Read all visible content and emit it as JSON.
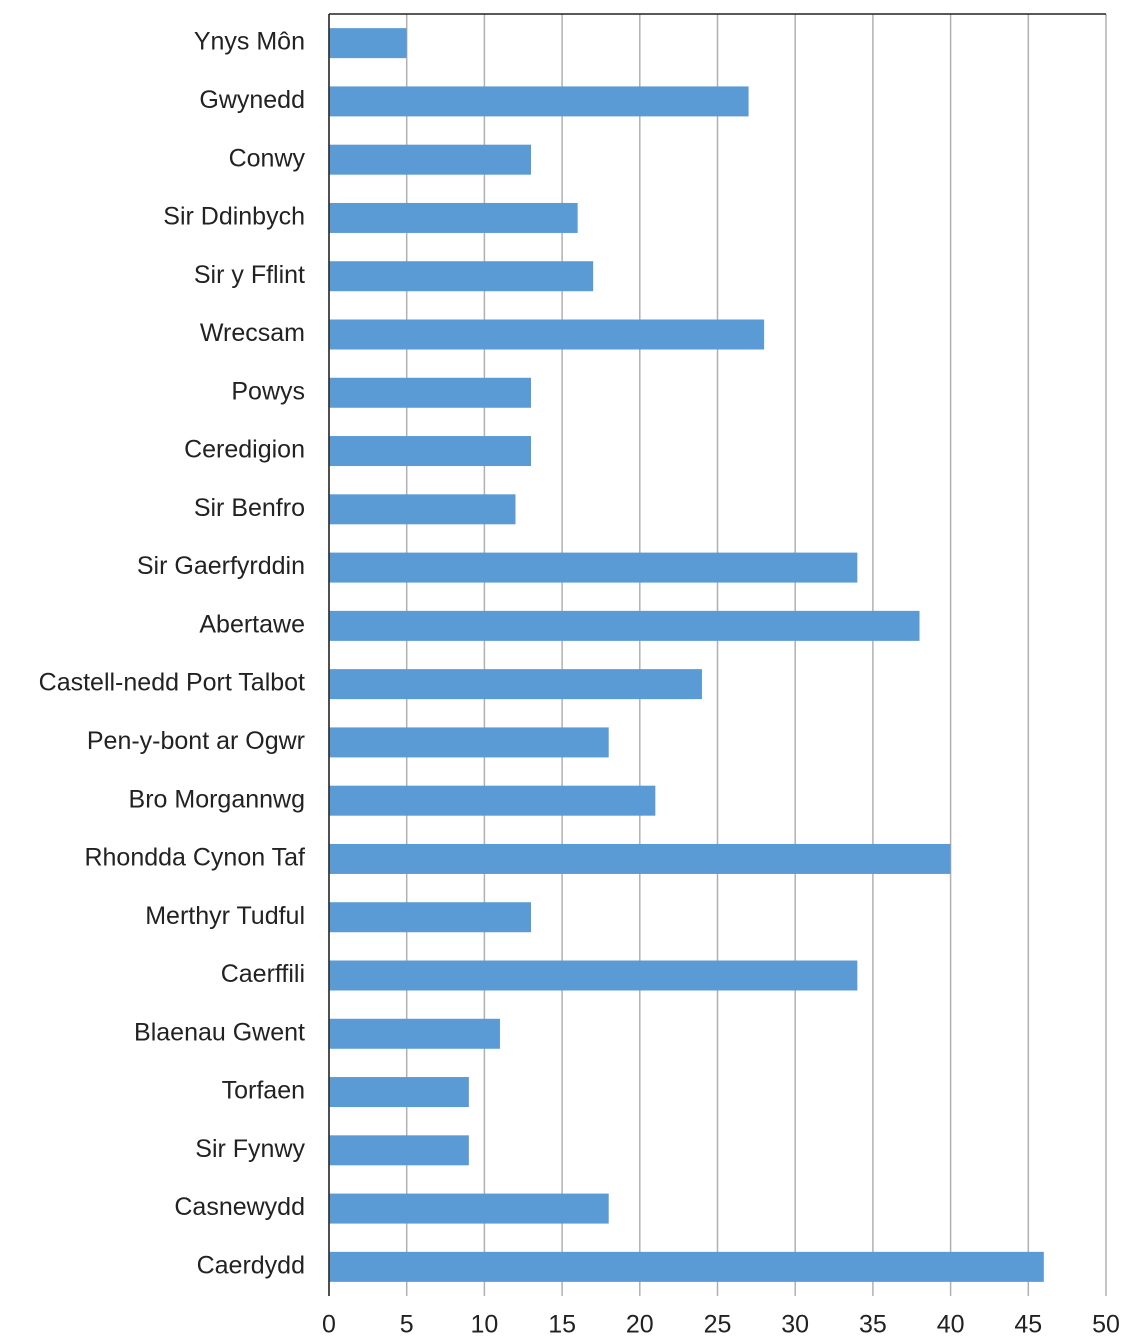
{
  "chart_data": {
    "type": "barh",
    "categories": [
      "Ynys Môn",
      "Gwynedd",
      "Conwy",
      "Sir Ddinbych",
      "Sir y Fflint",
      "Wrecsam",
      "Powys",
      "Ceredigion",
      "Sir Benfro",
      "Sir Gaerfyrddin",
      "Abertawe",
      "Castell-nedd Port Talbot",
      "Pen-y-bont ar Ogwr",
      "Bro Morgannwg",
      "Rhondda Cynon Taf",
      "Merthyr Tudful",
      "Caerffili",
      "Blaenau Gwent",
      "Torfaen",
      "Sir Fynwy",
      "Casnewydd",
      "Caerdydd"
    ],
    "values": [
      5,
      27,
      13,
      16,
      17,
      28,
      13,
      13,
      12,
      34,
      38,
      24,
      18,
      21,
      40,
      13,
      34,
      11,
      9,
      9,
      18,
      46
    ],
    "color": "#5b9bd5",
    "xlim": [
      0,
      50
    ],
    "xticks": [
      0,
      5,
      10,
      15,
      20,
      25,
      30,
      35,
      40,
      45,
      50
    ],
    "grid": true
  }
}
